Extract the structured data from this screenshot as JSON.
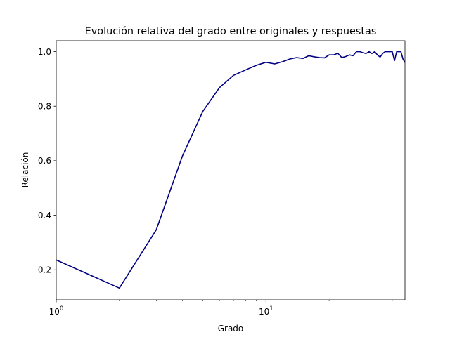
{
  "chart_data": {
    "type": "line",
    "title": "Evolución relativa del grado entre originales y respuestas",
    "xlabel": "Grado",
    "ylabel": "Relación",
    "xscale": "log",
    "xlim": [
      1,
      46
    ],
    "ylim": [
      0.09,
      1.04
    ],
    "x_ticks": [
      {
        "value": 1,
        "base": "10",
        "exp": "0"
      },
      {
        "value": 10,
        "base": "10",
        "exp": "1"
      }
    ],
    "y_ticks": [
      {
        "value": 0.2,
        "label": "0.2"
      },
      {
        "value": 0.4,
        "label": "0.4"
      },
      {
        "value": 0.6,
        "label": "0.6"
      },
      {
        "value": 0.8,
        "label": "0.8"
      },
      {
        "value": 1.0,
        "label": "1.0"
      }
    ],
    "grid": false,
    "line_color": "#000080",
    "series": [
      {
        "x": [
          1,
          2,
          3,
          4,
          5,
          6,
          7,
          8,
          9,
          10,
          11,
          12,
          13,
          14,
          15,
          16,
          17,
          18,
          19,
          20,
          21,
          22,
          23,
          24,
          25,
          26,
          27,
          28,
          29,
          30,
          31,
          32,
          33,
          34,
          35,
          36,
          37,
          38,
          39,
          40,
          41,
          42,
          43,
          44,
          45,
          46
        ],
        "y": [
          0.236,
          0.133,
          0.347,
          0.618,
          0.781,
          0.868,
          0.913,
          0.933,
          0.95,
          0.961,
          0.955,
          0.963,
          0.973,
          0.978,
          0.975,
          0.985,
          0.981,
          0.978,
          0.977,
          0.988,
          0.988,
          0.994,
          0.978,
          0.982,
          0.988,
          0.985,
          1.0,
          1.0,
          0.996,
          0.993,
          1.0,
          0.993,
          1.0,
          0.988,
          0.98,
          0.993,
          1.0,
          1.0,
          1.0,
          1.0,
          0.967,
          1.0,
          1.0,
          1.0,
          0.973,
          0.96
        ]
      }
    ]
  }
}
